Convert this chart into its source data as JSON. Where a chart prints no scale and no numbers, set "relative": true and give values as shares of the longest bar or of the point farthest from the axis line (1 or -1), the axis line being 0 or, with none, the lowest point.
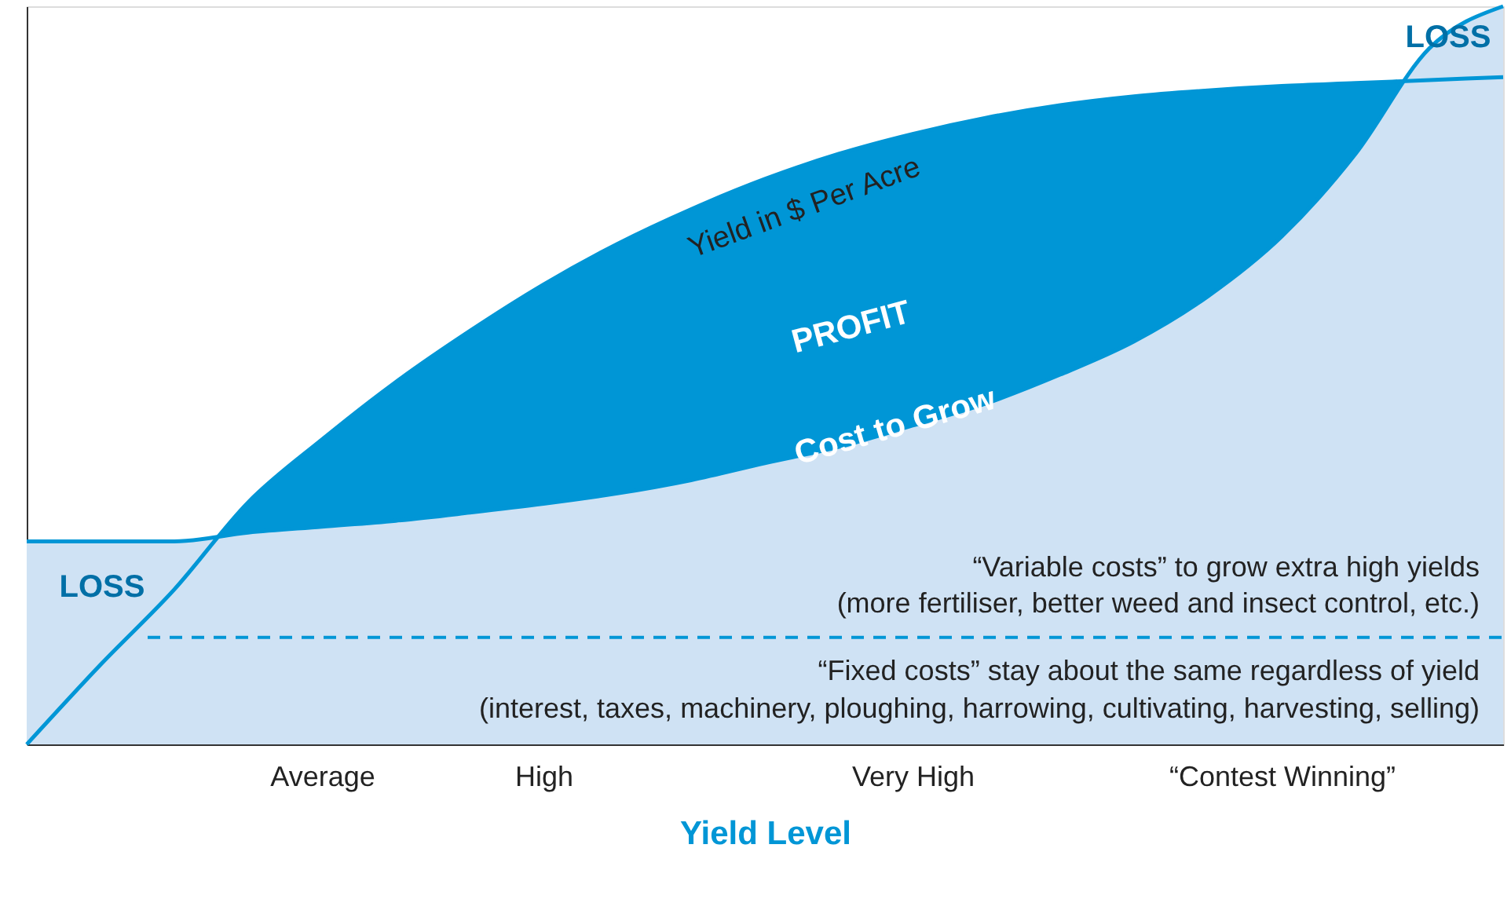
{
  "chart_data": {
    "type": "area",
    "relative": true,
    "xlabel": "Yield Level",
    "categories": [
      null,
      null,
      null,
      null,
      "Average",
      null,
      null,
      "High",
      null,
      null,
      null,
      null,
      "Very High",
      null,
      null,
      null,
      null,
      "“Contest Winning”",
      null,
      null,
      null
    ],
    "series": [
      {
        "name": "Yield in $ Per Acre",
        "color": "#0096d6",
        "values": [
          0,
          0.108,
          0.21,
          0.328,
          0.413,
          0.491,
          0.56,
          0.623,
          0.678,
          0.725,
          0.766,
          0.8,
          0.827,
          0.849,
          0.866,
          0.878,
          0.886,
          0.892,
          0.896,
          0.9,
          0.904
        ]
      },
      {
        "name": "Cost to Grow",
        "color": "#cfe2f4",
        "values": [
          0.275,
          0.275,
          0.275,
          0.287,
          0.295,
          0.303,
          0.314,
          0.326,
          0.34,
          0.358,
          0.381,
          0.403,
          0.432,
          0.462,
          0.501,
          0.546,
          0.607,
          0.688,
          0.8,
          0.943,
          1
        ]
      }
    ],
    "ref_lines": [
      {
        "axis": "y",
        "value": 0.145,
        "color": "#0096d6",
        "line_style": "dashed"
      }
    ],
    "annotations": [
      "PROFIT",
      "LOSS",
      "LOSS",
      "“Variable costs” to grow extra high yields",
      "(more fertiliser, better weed and insect control, etc.)",
      "“Fixed costs” stay about the same regardless of yield",
      "(interest, taxes, machinery, ploughing, harrowing, cultivating, harvesting, selling)"
    ],
    "grid": false
  }
}
